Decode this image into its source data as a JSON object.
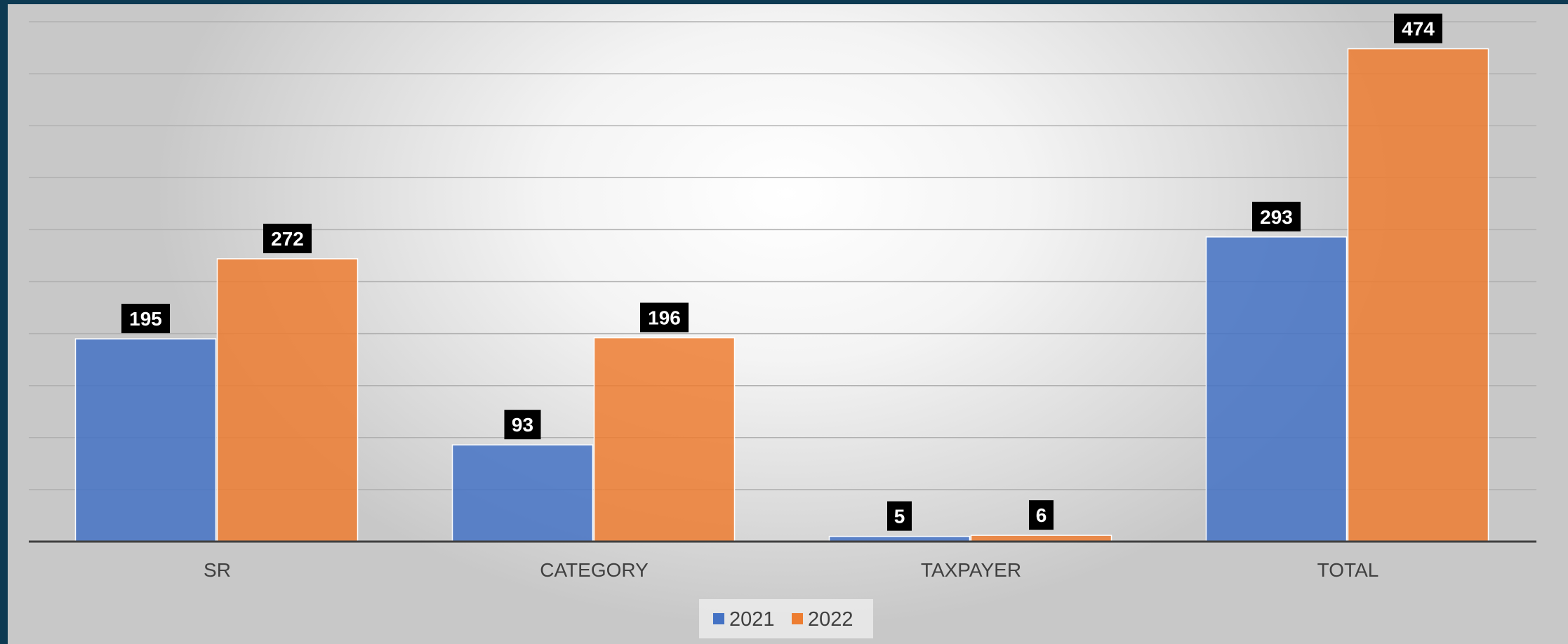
{
  "chart_data": {
    "type": "bar",
    "title": "",
    "xlabel": "",
    "ylabel": "",
    "categories": [
      "SR",
      "CATEGORY",
      "TAXPAYER",
      "TOTAL"
    ],
    "series": [
      {
        "name": "2021",
        "values": [
          195,
          93,
          5,
          293
        ],
        "color": "#4472c4"
      },
      {
        "name": "2022",
        "values": [
          272,
          196,
          6,
          474
        ],
        "color": "#ed7d31"
      }
    ],
    "ylim": [
      0,
      500
    ],
    "y_tick_step": 50,
    "y_axis_labels_visible": false,
    "grid": true,
    "data_labels": true,
    "legend_position": "bottom"
  },
  "colors": {
    "background_frame": "#0d3a52",
    "gridline": "#b0b0b0",
    "axis_line": "#404040",
    "data_label_bg": "#000000",
    "data_label_text": "#ffffff"
  }
}
